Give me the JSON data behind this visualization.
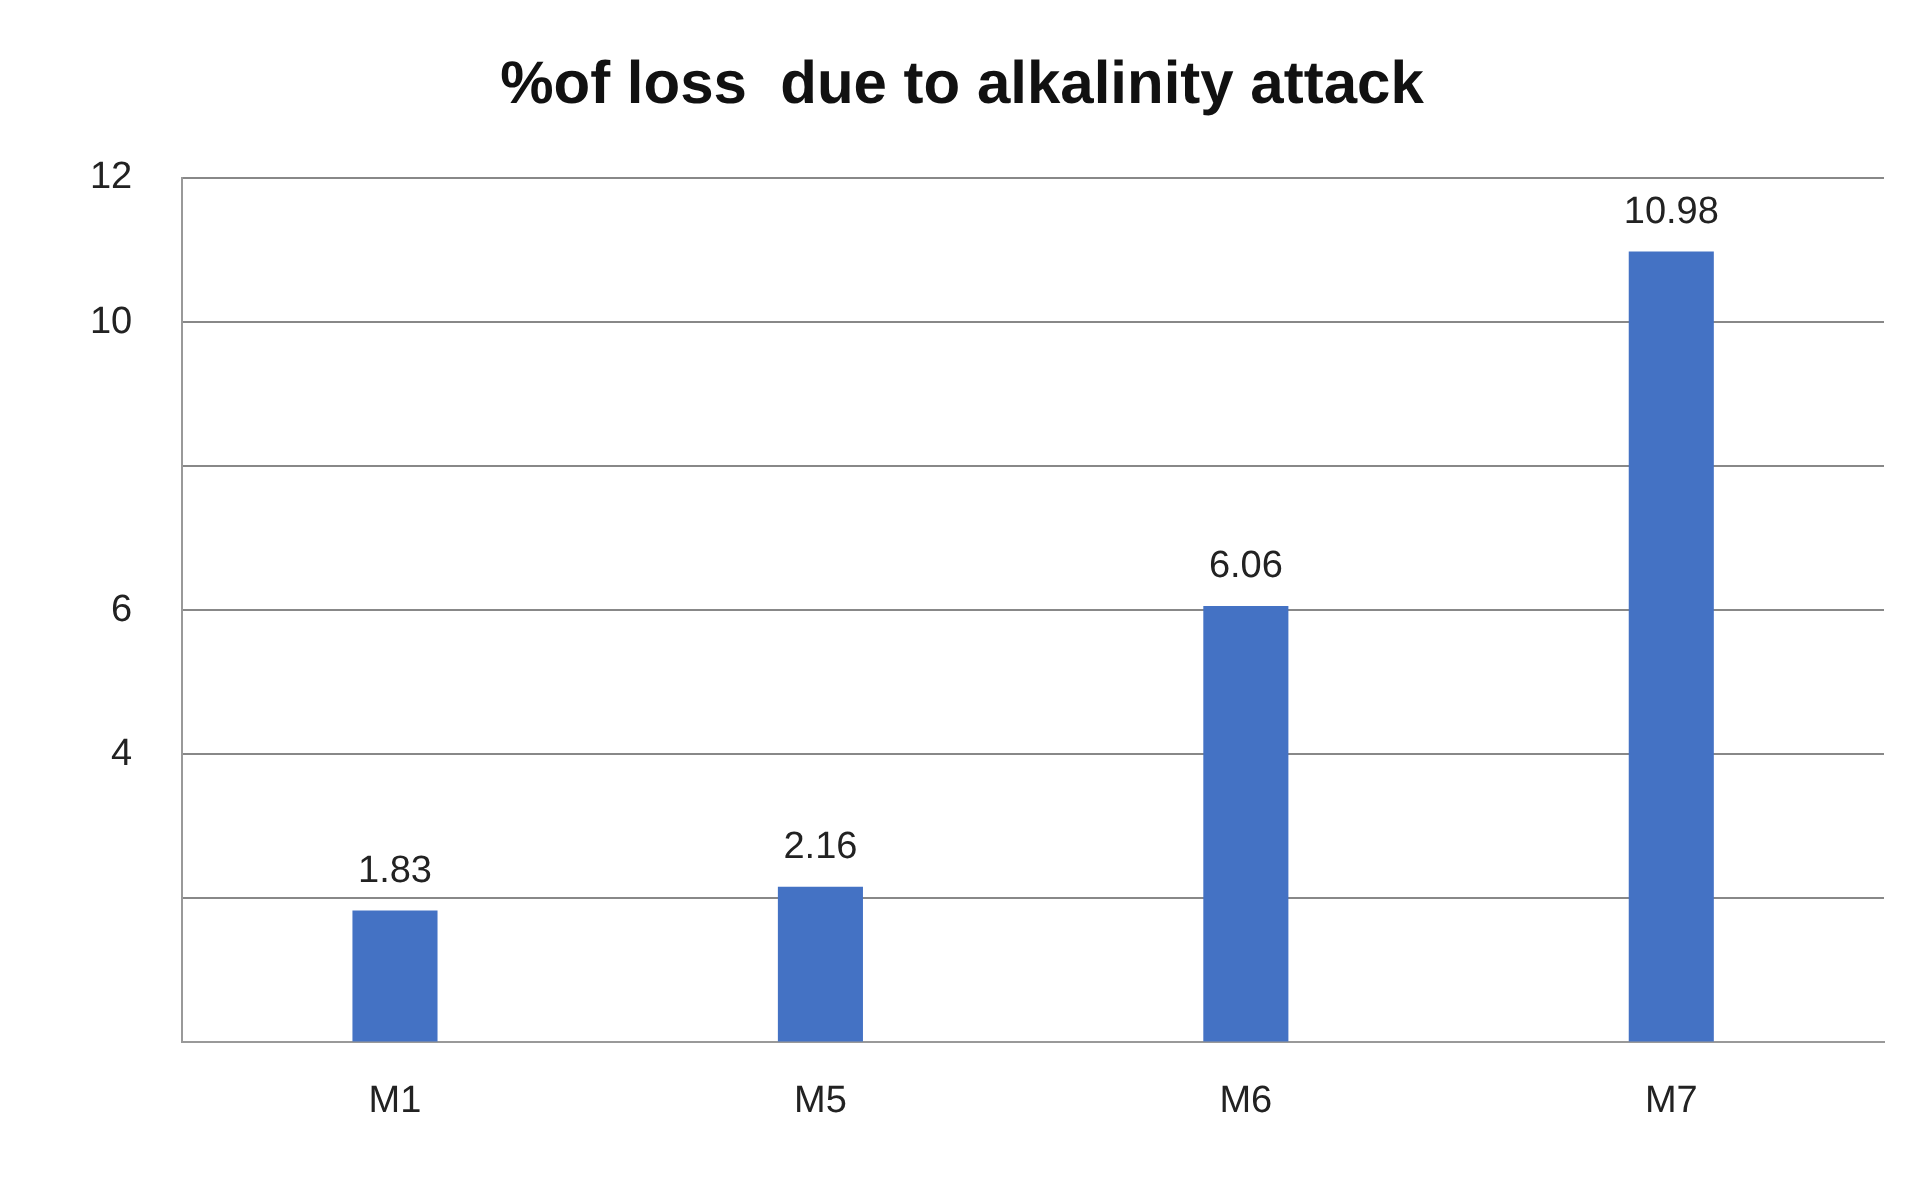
{
  "chart_data": {
    "type": "bar",
    "title": "%of loss  due to alkalinity attack",
    "categories": [
      "M1",
      "M5",
      "M6",
      "M7"
    ],
    "values": [
      1.83,
      2.16,
      6.06,
      10.98
    ],
    "color": "#4472c4",
    "ylim": [
      0,
      12
    ],
    "yticks": [
      {
        "value": 0,
        "label": null
      },
      {
        "value": 2,
        "label": null
      },
      {
        "value": 4,
        "label": "4"
      },
      {
        "value": 6,
        "label": "6"
      },
      {
        "value": 8,
        "label": null
      },
      {
        "value": 10,
        "label": "10"
      },
      12
    ],
    "grid": "y",
    "data_labels": true
  }
}
